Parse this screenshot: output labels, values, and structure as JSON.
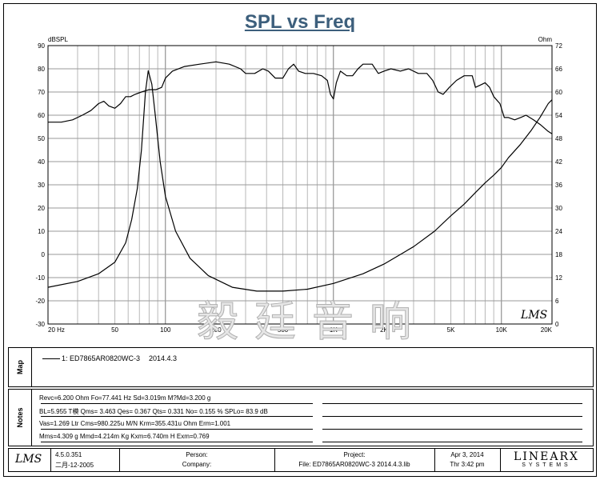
{
  "title": "SPL vs Freq",
  "chart_data": {
    "type": "line",
    "title": "SPL vs Freq",
    "x_scale": "log",
    "xlim": [
      20,
      20000
    ],
    "x_ticks": [
      20,
      50,
      100,
      200,
      500,
      1000,
      2000,
      5000,
      10000,
      20000
    ],
    "x_tick_labels": [
      "20 Hz",
      "50",
      "100",
      "200",
      "500",
      "1K",
      "2K",
      "5K",
      "10K",
      "20K"
    ],
    "ylabel_left": "dBSPL",
    "ylim_left": [
      -30,
      90
    ],
    "y_ticks_left": [
      -30,
      -20,
      -10,
      0,
      10,
      20,
      30,
      40,
      50,
      60,
      70,
      80,
      90
    ],
    "ylabel_right": "Ohm",
    "ylim_right": [
      0,
      72
    ],
    "y_ticks_right": [
      0,
      6,
      12,
      18,
      24,
      30,
      36,
      42,
      48,
      54,
      60,
      66,
      72
    ],
    "grid": true,
    "series": [
      {
        "axis": "left",
        "points": [
          [
            20,
            57
          ],
          [
            24,
            57
          ],
          [
            28,
            58
          ],
          [
            32,
            60
          ],
          [
            36,
            62
          ],
          [
            40,
            65
          ],
          [
            43,
            66
          ],
          [
            46,
            64
          ],
          [
            50,
            63
          ],
          [
            54,
            65
          ],
          [
            58,
            68
          ],
          [
            62,
            68
          ],
          [
            66,
            69
          ],
          [
            72,
            70
          ],
          [
            80,
            71
          ],
          [
            88,
            71
          ],
          [
            95,
            72
          ],
          [
            100,
            76
          ],
          [
            110,
            79
          ],
          [
            130,
            81
          ],
          [
            160,
            82
          ],
          [
            200,
            83
          ],
          [
            240,
            82
          ],
          [
            280,
            80
          ],
          [
            300,
            78
          ],
          [
            340,
            78
          ],
          [
            380,
            80
          ],
          [
            410,
            79
          ],
          [
            450,
            76
          ],
          [
            500,
            76
          ],
          [
            540,
            80
          ],
          [
            580,
            82
          ],
          [
            620,
            79
          ],
          [
            680,
            78
          ],
          [
            760,
            78
          ],
          [
            850,
            77
          ],
          [
            920,
            75
          ],
          [
            960,
            69
          ],
          [
            1000,
            67
          ],
          [
            1040,
            74
          ],
          [
            1100,
            79
          ],
          [
            1200,
            77
          ],
          [
            1300,
            77
          ],
          [
            1400,
            80
          ],
          [
            1500,
            82
          ],
          [
            1600,
            82
          ],
          [
            1700,
            82
          ],
          [
            1850,
            78
          ],
          [
            2000,
            79
          ],
          [
            2200,
            80
          ],
          [
            2500,
            79
          ],
          [
            2800,
            80
          ],
          [
            3200,
            78
          ],
          [
            3600,
            78
          ],
          [
            3900,
            75
          ],
          [
            4200,
            70
          ],
          [
            4500,
            69
          ],
          [
            4900,
            72
          ],
          [
            5400,
            75
          ],
          [
            6000,
            77
          ],
          [
            6700,
            77
          ],
          [
            7000,
            72
          ],
          [
            7500,
            73
          ],
          [
            8000,
            74
          ],
          [
            8500,
            72
          ],
          [
            9000,
            68
          ],
          [
            9800,
            65
          ],
          [
            10400,
            59
          ],
          [
            11000,
            59
          ],
          [
            12000,
            58
          ],
          [
            13000,
            59
          ],
          [
            14000,
            60
          ],
          [
            15500,
            58
          ],
          [
            17000,
            56
          ],
          [
            19000,
            53
          ],
          [
            20000,
            52
          ]
        ]
      },
      {
        "axis": "right",
        "points": [
          [
            20,
            9.5
          ],
          [
            30,
            11
          ],
          [
            40,
            13
          ],
          [
            50,
            16
          ],
          [
            58,
            21
          ],
          [
            63,
            27
          ],
          [
            68,
            35
          ],
          [
            72,
            45
          ],
          [
            76,
            60
          ],
          [
            79,
            65.5
          ],
          [
            83,
            62
          ],
          [
            87,
            54
          ],
          [
            93,
            42
          ],
          [
            100,
            33
          ],
          [
            115,
            24
          ],
          [
            140,
            17
          ],
          [
            180,
            12.5
          ],
          [
            250,
            9.5
          ],
          [
            350,
            8.5
          ],
          [
            500,
            8.5
          ],
          [
            700,
            9
          ],
          [
            1000,
            10.5
          ],
          [
            1500,
            13
          ],
          [
            2000,
            15.5
          ],
          [
            3000,
            20
          ],
          [
            4000,
            24
          ],
          [
            5000,
            28
          ],
          [
            6000,
            31
          ],
          [
            7000,
            34
          ],
          [
            8000,
            36.5
          ],
          [
            9000,
            38.5
          ],
          [
            10000,
            40.5
          ],
          [
            11000,
            43
          ],
          [
            13000,
            46.5
          ],
          [
            15000,
            50
          ],
          [
            17000,
            53.5
          ],
          [
            19000,
            57
          ],
          [
            20000,
            58
          ]
        ]
      }
    ]
  },
  "watermark": "毅廷音响",
  "lms_mark": "LMS",
  "map": {
    "label": "Map",
    "legend": "1: ED7865AR0820WC-3",
    "date": "2014.4.3"
  },
  "notes": {
    "label": "Notes",
    "lines": [
      "Revc=6.200 Ohm  Fo=77.441 Hz  Sd=3.019m  M?Md=3.200 g",
      "BL=5.955 T模  Qms= 3.463  Qes= 0.367  Qts= 0.331  No= 0.155 %  SPLo= 83.9 dB",
      "Vas=1.269 Ltr  Cms=980.225u M/N  Krm=355.431u Ohm  Erm=1.001",
      "Mms=4.309 g  Mmd=4.214m Kg  Kxm=6.740m H  Exm=0.769"
    ]
  },
  "footer": {
    "logo": "LMS",
    "version": "4.5.0.351",
    "build": "二月-12-2005",
    "person_label": "Person:",
    "company_label": "Company:",
    "project_label": "Project:",
    "file_text": "File: ED7865AR0820WC-3   2014.4.3.lib",
    "date": "Apr  3, 2014",
    "time": "Thr  3:42 pm",
    "brand": "LINEARX",
    "brand_sub": "SYSTEMS"
  }
}
